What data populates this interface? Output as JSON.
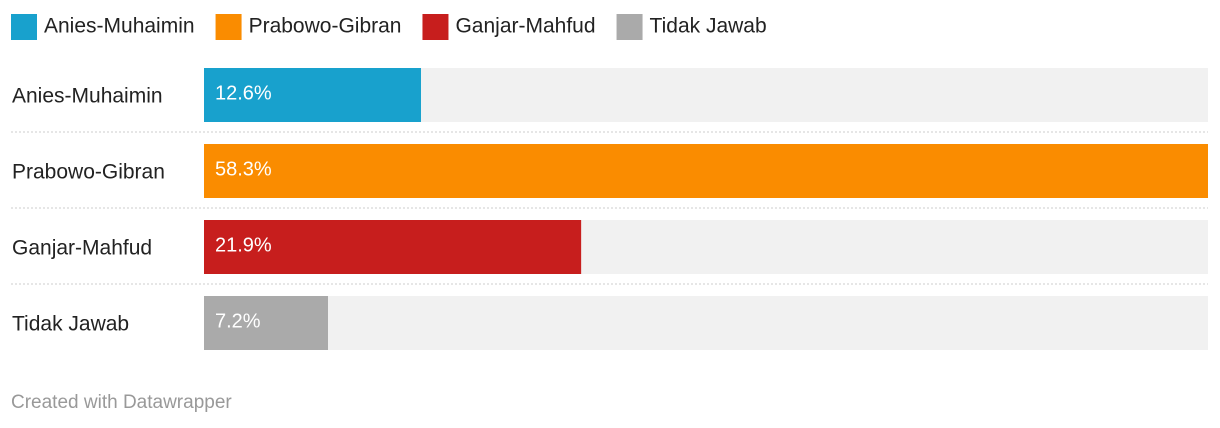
{
  "chart_data": {
    "type": "bar",
    "orientation": "horizontal",
    "categories": [
      "Anies-Muhaimin",
      "Prabowo-Gibran",
      "Ganjar-Mahfud",
      "Tidak Jawab"
    ],
    "values": [
      12.6,
      58.3,
      21.9,
      7.2
    ],
    "value_labels": [
      "12.6%",
      "58.3%",
      "21.9%",
      "7.2%"
    ],
    "colors": [
      "#18a1cd",
      "#fa8c00",
      "#c71e1d",
      "#aaaaaa"
    ],
    "xlim": [
      0,
      58.3
    ],
    "credit": "Created with Datawrapper"
  }
}
